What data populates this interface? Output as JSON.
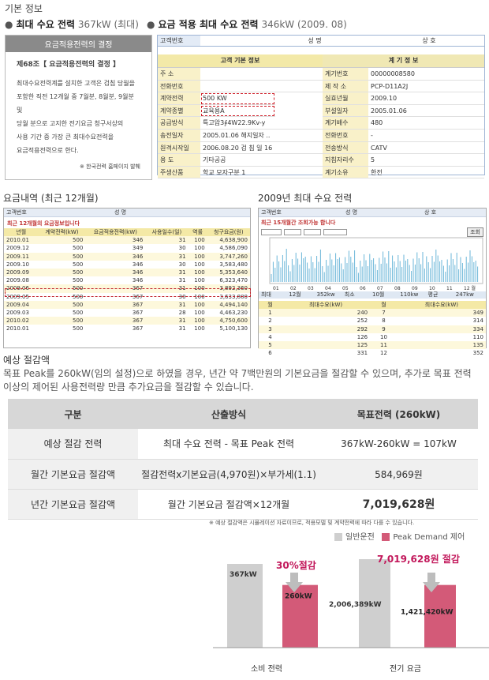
{
  "header": {
    "section_title": "기본 정보"
  },
  "summary": {
    "max_demand_label": "최대 수요 전력",
    "max_demand_value": "367kW (최대)",
    "applied_label": "요금 적용 최대 수요 전력",
    "applied_value": "346kW (2009. 08)"
  },
  "rate_box": {
    "head": "요금적용전력의 결정",
    "article": "제68조【 요금적용전력의 결정 】",
    "lines": [
      "최대수요전력계를 설치한 고객은 검침 당월을",
      "포함한 직전 12개월 중 7월분, 8월분, 9월분 및",
      "당월 분으로 고지한 전기요금 청구서상의",
      "사용 기간 중 가장 큰 최대수요전력을",
      "요금적용전력으로 한다."
    ],
    "source": "※ 한국전력 홈페이지 발췌"
  },
  "customer": {
    "top_labels": [
      "고객번호",
      "성  명",
      "상  호"
    ],
    "band_left": "고객 기본 정보",
    "band_right": "계 기 정 보",
    "rows": [
      [
        "주   소",
        "",
        "계기번호",
        "00000008580"
      ],
      [
        "전화번호",
        "",
        "제 작 소",
        "PCP-D11A2J"
      ],
      [
        "계약전력",
        "500 KW",
        "실효년월",
        "2009.10"
      ],
      [
        "계약종별",
        "교육용A",
        "부설일자",
        "2005.01.06"
      ],
      [
        "공급방식",
        "특고압3∮4W22.9Kv-y",
        "계기배수",
        "480"
      ],
      [
        "송전일자",
        "2005.01.06  해지일자 ..",
        "전화번호",
        "-"
      ],
      [
        "원격시작일",
        "2006.08.20  검 침 일   16",
        "전송방식",
        "CATV"
      ],
      [
        "용   도",
        "기타공공",
        "지침자리수",
        "5"
      ],
      [
        "주생산품",
        "학교     모자구분  1",
        "계기소유",
        "한전"
      ]
    ]
  },
  "billing": {
    "title": "요금내역 (최근 12개월)",
    "top_labels": [
      "고객번호",
      "성  명"
    ],
    "caption": "최근 12개월의 요금정보입니다",
    "headers": [
      "년월",
      "계약전력(kW)",
      "요금적용전력(kW)",
      "사용일수(일)",
      "역률",
      "청구요금(원)"
    ],
    "rows": [
      [
        "2010.01",
        "500",
        "346",
        "31",
        "100",
        "4,638,900"
      ],
      [
        "2009.12",
        "500",
        "349",
        "30",
        "100",
        "4,586,090"
      ],
      [
        "2009.11",
        "500",
        "346",
        "31",
        "100",
        "3,747,260"
      ],
      [
        "2009.10",
        "500",
        "346",
        "30",
        "100",
        "3,583,480"
      ],
      [
        "2009.09",
        "500",
        "346",
        "31",
        "100",
        "5,353,640"
      ],
      [
        "2009.08",
        "500",
        "346",
        "31",
        "100",
        "6,323,470"
      ],
      [
        "2009.06",
        "500",
        "367",
        "31",
        "100",
        "3,892,360"
      ],
      [
        "2009.05",
        "500",
        "367",
        "30",
        "100",
        "3,633,800"
      ],
      [
        "2009.04",
        "500",
        "367",
        "31",
        "100",
        "4,494,140"
      ],
      [
        "2009.03",
        "500",
        "367",
        "28",
        "100",
        "4,463,230"
      ],
      [
        "2010.02",
        "500",
        "367",
        "31",
        "100",
        "4,750,600"
      ],
      [
        "2010.01",
        "500",
        "367",
        "31",
        "100",
        "5,100,130"
      ]
    ]
  },
  "demand": {
    "title": "2009년 최대 수요 전력",
    "top_labels": [
      "고객번호",
      "성  명",
      "상  호"
    ],
    "caption": "최근 15개월간 조회가능 합니다",
    "query_btn": "조회",
    "month_ticks": [
      "01",
      "02",
      "03",
      "04",
      "05",
      "06",
      "07",
      "08",
      "09",
      "10",
      "11",
      "12 월"
    ],
    "summary_strip": [
      "최대",
      "12월",
      "352kw",
      "최소",
      "10월",
      "110kw",
      "평균",
      "247kw"
    ],
    "list_headers": [
      "월",
      "최대수요(kW)",
      "월",
      "최대수요(kW)"
    ],
    "list_rows": [
      [
        "1",
        "240",
        "7",
        "349"
      ],
      [
        "2",
        "252",
        "8",
        "314"
      ],
      [
        "3",
        "292",
        "9",
        "334"
      ],
      [
        "4",
        "126",
        "10",
        "110"
      ],
      [
        "5",
        "125",
        "11",
        "135"
      ],
      [
        "6",
        "331",
        "12",
        "352"
      ]
    ]
  },
  "savings": {
    "title": "예상 절감액",
    "desc1": "목표 Peak를 260kW(임의 설정)으로 하였을 경우, 년간 약 7백만원의 기본요금을 절감할 수 있으며, 추가로 목표 전력",
    "desc2": "이상의 제어된 사용전력량 만큼 추가요금을 절감할 수 있습니다.",
    "headers": [
      "구분",
      "산출방식",
      "목표전력 (260kW)"
    ],
    "rows": [
      [
        "예상 절감 전력",
        "최대 수요 전력 - 목표 Peak 전력",
        "367kW-260kW = 107kW"
      ],
      [
        "월간 기본요금 절감액",
        "절감전력x기본요금(4,970원)×부가세(1.1)",
        "584,969원"
      ],
      [
        "년간 기본요금 절감액",
        "월간 기본요금 절감액×12개월",
        "7,019,628원"
      ]
    ],
    "note": "※ 예상 절감액은 시뮬레이션 자료이므로, 적용모델 및 계약전력에 따라 다를 수 있습니다."
  },
  "chart_data": {
    "type": "bar",
    "categories": [
      "소비 전력",
      "전기 요금"
    ],
    "series": [
      {
        "name": "일반운전",
        "values": [
          367,
          2006389
        ],
        "labels": [
          "367kW",
          "2,006,389kW"
        ]
      },
      {
        "name": "Peak Demand 제어",
        "values": [
          260,
          1421420
        ],
        "labels": [
          "260kW",
          "1,421,420kW"
        ]
      }
    ],
    "annotations": [
      "30%절감",
      "7,019,628원 절감"
    ],
    "colors": {
      "normal": "#cfcfcf",
      "peak": "#d35a78",
      "accent": "#c2185b"
    }
  }
}
